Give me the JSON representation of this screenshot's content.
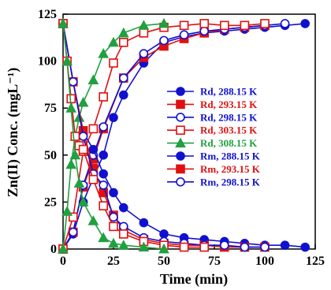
{
  "chart_data": {
    "type": "line",
    "title": "",
    "xlabel": "Time (min)",
    "ylabel": "Zn(II) Conc. (mgL⁻¹)",
    "xlim": [
      0,
      125
    ],
    "ylim": [
      0,
      125
    ],
    "xticks": [
      "0",
      "25",
      "50",
      "75",
      "100",
      "125"
    ],
    "yticks": [
      "0",
      "25",
      "50",
      "75",
      "100",
      "125"
    ],
    "grid": false,
    "legend_position": "right-middle",
    "series": [
      {
        "name": "Rd, 288.15 K",
        "group": "desorption",
        "color": "#1010d0",
        "marker": "circle-filled",
        "x": [
          0,
          5,
          10,
          15,
          20,
          25,
          30,
          40,
          50,
          60,
          70,
          80,
          90,
          100,
          110,
          120
        ],
        "y": [
          0,
          8,
          25,
          38,
          50,
          70,
          82,
          99,
          110,
          113,
          115,
          116,
          117,
          118,
          119,
          120
        ]
      },
      {
        "name": "Rd, 293.15 K",
        "group": "desorption",
        "color": "#e01010",
        "marker": "square-filled",
        "x": [
          0,
          5,
          10,
          15,
          20,
          30,
          40,
          50,
          60,
          70,
          80,
          90,
          100
        ],
        "y": [
          0,
          9,
          33,
          48,
          64,
          91,
          102,
          108,
          112,
          115,
          117,
          118,
          119
        ]
      },
      {
        "name": "Rd, 298.15 K",
        "group": "desorption",
        "color": "#1010d0",
        "marker": "circle-open",
        "x": [
          0,
          5,
          10,
          15,
          20,
          30,
          40,
          50,
          60,
          70,
          80,
          90,
          100,
          110
        ],
        "y": [
          0,
          9,
          34,
          50,
          65,
          91,
          104,
          111,
          114,
          116,
          117,
          118,
          119,
          120
        ]
      },
      {
        "name": "Rd, 303.15 K",
        "group": "desorption",
        "color": "#e01010",
        "marker": "square-open",
        "x": [
          0,
          5,
          10,
          15,
          20,
          25,
          30,
          40,
          50,
          60,
          70,
          80,
          90,
          100
        ],
        "y": [
          0,
          17,
          52,
          64,
          81,
          99,
          110,
          115,
          118,
          119,
          120,
          119,
          119,
          120
        ]
      },
      {
        "name": "Rd, 308.15 K",
        "group": "desorption",
        "color": "#20a040",
        "marker": "triangle-filled",
        "x": [
          0,
          2,
          4,
          6,
          8,
          10,
          15,
          20,
          25,
          30,
          40,
          50
        ],
        "y": [
          0,
          20,
          45,
          60,
          70,
          78,
          90,
          104,
          110,
          115,
          119,
          120
        ]
      },
      {
        "name": "Rm, 288.15 K",
        "group": "remaining",
        "color": "#1010d0",
        "marker": "circle-filled",
        "x": [
          0,
          5,
          10,
          15,
          20,
          25,
          30,
          40,
          50,
          60,
          70,
          80,
          90,
          100,
          110,
          120
        ],
        "y": [
          120,
          89,
          62,
          53,
          40,
          30,
          22,
          14,
          8,
          6,
          5,
          4,
          3,
          2,
          2,
          1
        ]
      },
      {
        "name": "Rm, 293.15 K",
        "group": "remaining",
        "color": "#e01010",
        "marker": "square-filled",
        "x": [
          0,
          5,
          10,
          15,
          20,
          25,
          30,
          40,
          50,
          60,
          70,
          80,
          90,
          100
        ],
        "y": [
          120,
          89,
          63,
          43,
          30,
          18,
          10,
          5,
          3,
          2,
          2,
          1,
          1,
          1
        ]
      },
      {
        "name": "Rm, 298.15 K",
        "group": "remaining",
        "color": "#1010d0",
        "marker": "circle-open",
        "x": [
          0,
          5,
          10,
          15,
          20,
          25,
          30,
          40,
          50,
          60,
          70,
          80,
          90,
          100
        ],
        "y": [
          120,
          89,
          60,
          40,
          34,
          17,
          12,
          6,
          4,
          3,
          2,
          2,
          1,
          1
        ]
      },
      {
        "name": "",
        "group": "remaining",
        "color": "#e01010",
        "marker": "square-open",
        "x": [
          0,
          2,
          4,
          6,
          8,
          10,
          15,
          20,
          25,
          30,
          40,
          50,
          60,
          70
        ],
        "y": [
          120,
          100,
          80,
          60,
          55,
          53,
          37,
          23,
          12,
          8,
          4,
          2,
          1,
          1
        ]
      },
      {
        "name": "",
        "group": "remaining",
        "color": "#20a040",
        "marker": "triangle-filled",
        "x": [
          0,
          2,
          4,
          6,
          8,
          10,
          15,
          20,
          25,
          30,
          40,
          50
        ],
        "y": [
          120,
          100,
          75,
          50,
          35,
          25,
          15,
          6,
          3,
          2,
          1,
          0
        ]
      }
    ]
  }
}
